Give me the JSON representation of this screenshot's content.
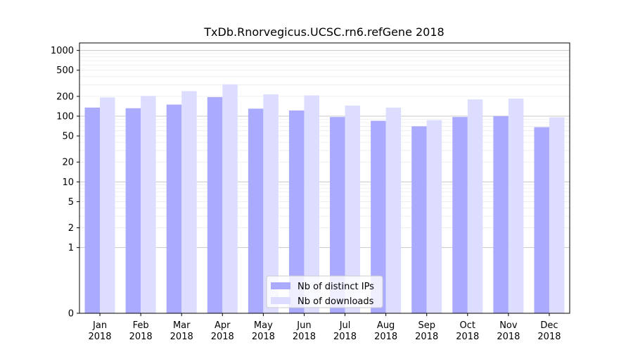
{
  "chart_data": {
    "type": "bar",
    "title": "TxDb.Rnorvegicus.UCSC.rn6.refGene 2018",
    "xlabel": "",
    "ylabel": "",
    "yscale": "symlog",
    "ylim": [
      0,
      1300
    ],
    "categories": [
      [
        "Jan",
        "2018"
      ],
      [
        "Feb",
        "2018"
      ],
      [
        "Mar",
        "2018"
      ],
      [
        "Apr",
        "2018"
      ],
      [
        "May",
        "2018"
      ],
      [
        "Jun",
        "2018"
      ],
      [
        "Jul",
        "2018"
      ],
      [
        "Aug",
        "2018"
      ],
      [
        "Sep",
        "2018"
      ],
      [
        "Oct",
        "2018"
      ],
      [
        "Nov",
        "2018"
      ],
      [
        "Dec",
        "2018"
      ]
    ],
    "y_ticks": [
      {
        "value": 0,
        "label": "0"
      },
      {
        "value": 1,
        "label": "1"
      },
      {
        "value": 2,
        "label": "2"
      },
      {
        "value": 5,
        "label": "5"
      },
      {
        "value": 10,
        "label": "10"
      },
      {
        "value": 20,
        "label": "20"
      },
      {
        "value": 50,
        "label": "50"
      },
      {
        "value": 100,
        "label": "100"
      },
      {
        "value": 200,
        "label": "200"
      },
      {
        "value": 500,
        "label": "500"
      },
      {
        "value": 1000,
        "label": "1000"
      }
    ],
    "series": [
      {
        "name": "Nb of distinct IPs",
        "color": "#aaaaff",
        "values": [
          135,
          132,
          150,
          195,
          130,
          122,
          97,
          85,
          70,
          97,
          100,
          68
        ]
      },
      {
        "name": "Nb of downloads",
        "color": "#ddddff",
        "values": [
          193,
          203,
          240,
          305,
          215,
          207,
          145,
          135,
          87,
          180,
          185,
          96
        ]
      }
    ],
    "grid": true,
    "legend_position": "bottom-center"
  }
}
